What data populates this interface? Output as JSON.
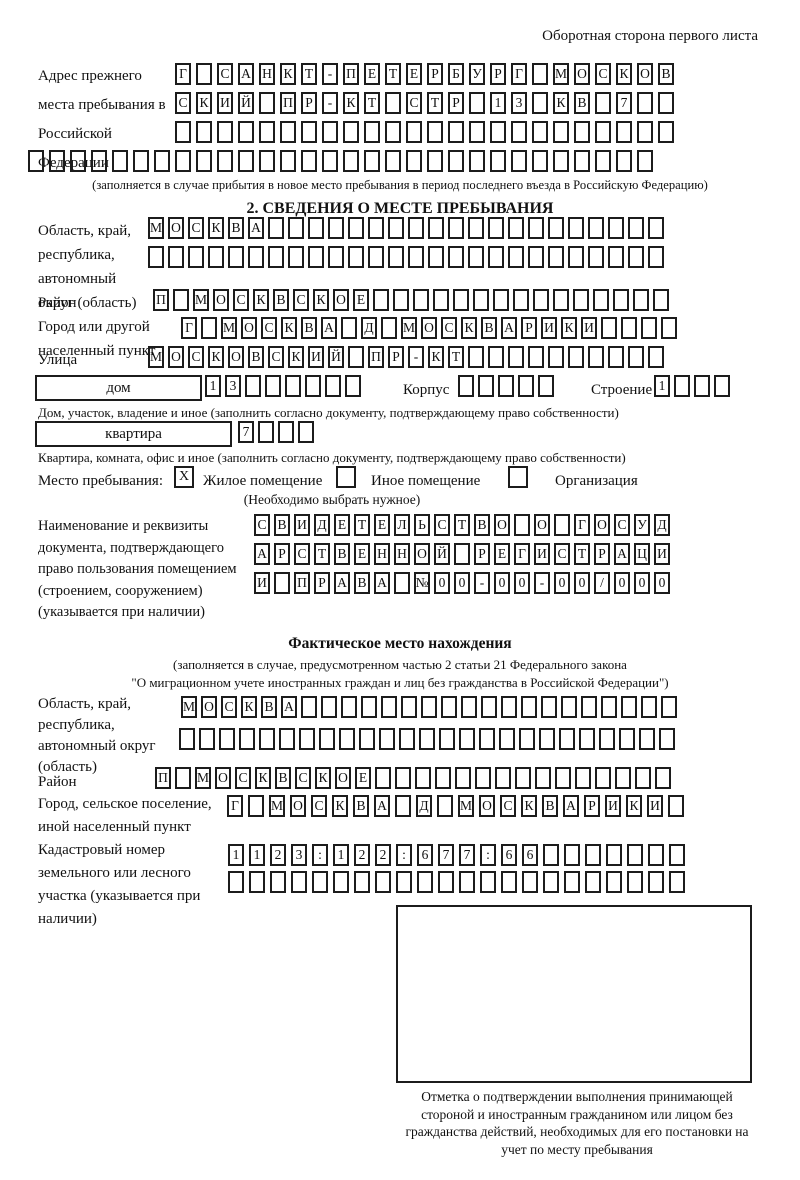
{
  "page": {
    "header_note": "Оборотная сторона первого листа"
  },
  "prev_address": {
    "label": "Адрес прежнего места пребывания в Российской Федерации",
    "note": "(заполняется в случае прибытия в новое место пребывания в период последнего въезда в Российскую Федерацию)",
    "rows": {
      "r1": {
        "len": 24,
        "text": "Г САНКТ-ПЕТЕРБУРГ МОСКОВ"
      },
      "r2": {
        "len": 24,
        "text": "СКИЙ ПР-КТ СТР 13 КВ 7"
      },
      "r3": {
        "len": 24,
        "text": ""
      },
      "r4": {
        "len": 30,
        "text": ""
      }
    }
  },
  "section2": {
    "title": "2. СВЕДЕНИЯ О МЕСТЕ ПРЕБЫВАНИЯ",
    "oblast": {
      "label": "Область, край, республика, автономный округ (область)",
      "r1": {
        "len": 26,
        "text": "МОСКВА"
      },
      "r2": {
        "len": 26,
        "text": ""
      }
    },
    "raion": {
      "label": "Район",
      "r1": {
        "len": 26,
        "text": "П МОСКВСКОЕ"
      }
    },
    "gorod": {
      "label": "Город или другой населенный пункт",
      "r1": {
        "len": 25,
        "text": "Г МОСКВА Д МОСКВАРИКИ"
      }
    },
    "ulitsa": {
      "label": "Улица",
      "r1": {
        "len": 26,
        "text": "МОСКОВСКИЙ ПР-КТ"
      }
    },
    "dom": {
      "box_label": "дом",
      "num": {
        "len": 8,
        "text": "13"
      },
      "korpus_label": "Корпус",
      "korpus": {
        "len": 5,
        "text": ""
      },
      "stroenie_label": "Строение",
      "stroenie": {
        "len": 4,
        "text": "1"
      },
      "note": "Дом, участок, владение и иное (заполнить согласно документу, подтверждающему право собственности)"
    },
    "kvartira": {
      "box_label": "квартира",
      "num": {
        "len": 4,
        "text": "7"
      },
      "note": "Квартира, комната, офис и иное (заполнить согласно документу, подтверждающему право собственности)"
    },
    "mesto": {
      "label": "Место пребывания:",
      "zhiloe_mark": "X",
      "zhiloe_label": "Жилое помещение",
      "inoe_mark": "",
      "inoe_label": "Иное помещение",
      "org_mark": "",
      "org_label": "Организация",
      "note": "(Необходимо выбрать нужное)"
    },
    "doc": {
      "label": "Наименование и реквизиты документа, подтверждающего право пользования помещением (строением, сооружением) (указывается при наличии)",
      "r1": {
        "len": 21,
        "text": "СВИДЕТЕЛЬСТВО О ГОСУД"
      },
      "r2": {
        "len": 21,
        "text": "АРСТВЕННОЙ РЕГИСТРАЦИ"
      },
      "r3": {
        "len": 21,
        "text": "И ПРАВА №00-00-00/000"
      }
    }
  },
  "fact": {
    "title": "Фактическое место нахождения",
    "note1": "(заполняется в случае, предусмотренном частью 2 статьи 21 Федерального закона",
    "note2": "\"О миграционном учете иностранных граждан и лиц без гражданства в Российской Федерации\")",
    "oblast": {
      "label": "Область, край, республика, автономный округ (область)",
      "r1": {
        "len": 25,
        "text": "МОСКВА"
      },
      "r2": {
        "len": 25,
        "text": ""
      }
    },
    "raion": {
      "label": "Район",
      "r1": {
        "len": 26,
        "text": "П МОСКВСКОЕ"
      }
    },
    "gorod": {
      "label": "Город, сельское поселение, иной населенный пункт",
      "r1": {
        "len": 22,
        "text": "Г МОСКВА Д МОСКВАРИКИ"
      }
    },
    "kadastr": {
      "label": "Кадастровый номер земельного или лесного участка (указывается при наличии)",
      "r1": {
        "len": 22,
        "text": "1123:122:677:66"
      },
      "r2": {
        "len": 22,
        "text": ""
      }
    },
    "stamp_note": "Отметка о подтверждении выполнения принимающей стороной и иностранным гражданином или лицом без гражданства действий, необходимых для его постановки на учет по месту пребывания"
  }
}
